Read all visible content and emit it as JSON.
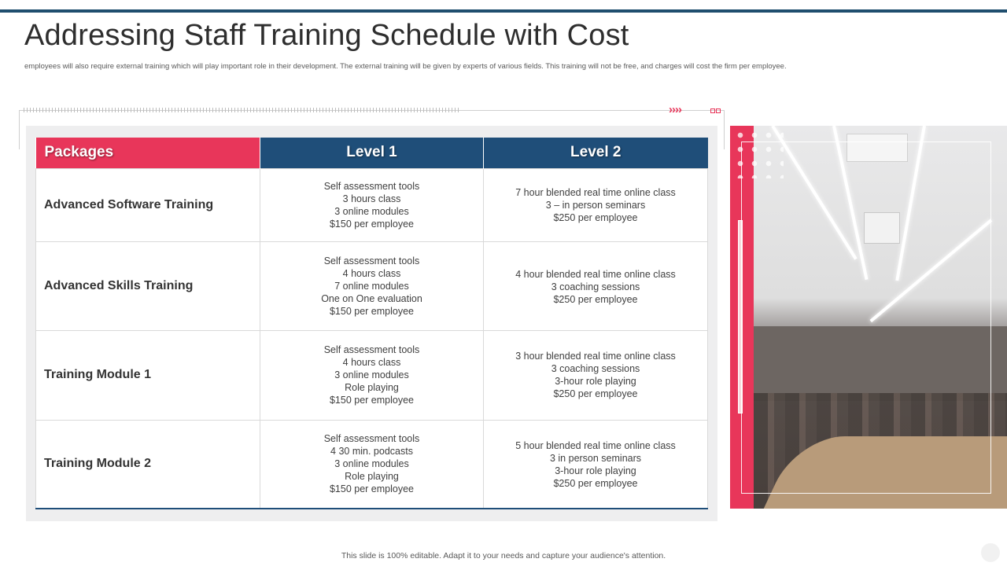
{
  "slide": {
    "title": "Addressing Staff Training Schedule with Cost",
    "subtitle": "employees will also require external training which will play important role in their development. The external training will be given by experts of various fields. This training will not be free, and charges will cost the firm per employee.",
    "footer": "This slide is 100% editable. Adapt it to your needs and capture your audience's attention."
  },
  "colors": {
    "accent": "#e8365a",
    "header_blue": "#1f4e79",
    "top_rule": "#1f4e6e"
  },
  "decor": {
    "chevrons": "››››"
  },
  "table": {
    "headers": [
      "Packages",
      "Level 1",
      "Level 2"
    ],
    "rows": [
      {
        "package": "Advanced Software Training",
        "level1": [
          "Self assessment tools",
          "3 hours class",
          "3 online modules",
          "$150 per employee"
        ],
        "level2": [
          "7 hour blended real time online class",
          "3 – in person seminars",
          "$250 per employee"
        ]
      },
      {
        "package": "Advanced Skills Training",
        "level1": [
          "Self assessment tools",
          "4 hours class",
          "7 online modules",
          "One on One evaluation",
          "$150 per employee"
        ],
        "level2": [
          "4 hour blended real time online class",
          "3 coaching sessions",
          "$250 per employee"
        ]
      },
      {
        "package": "Training Module 1",
        "level1": [
          "Self assessment tools",
          "4 hours class",
          "3 online modules",
          "Role playing",
          "$150 per employee"
        ],
        "level2": [
          "3 hour blended real time online class",
          "3 coaching sessions",
          "3-hour role playing",
          "$250 per employee"
        ]
      },
      {
        "package": "Training Module 2",
        "level1": [
          "Self assessment tools",
          "4  30 min. podcasts",
          "3 online modules",
          "Role playing",
          "$150 per employee"
        ],
        "level2": [
          "5 hour blended real time online class",
          "3 in person seminars",
          "3-hour role playing",
          "$250 per employee"
        ]
      }
    ]
  }
}
